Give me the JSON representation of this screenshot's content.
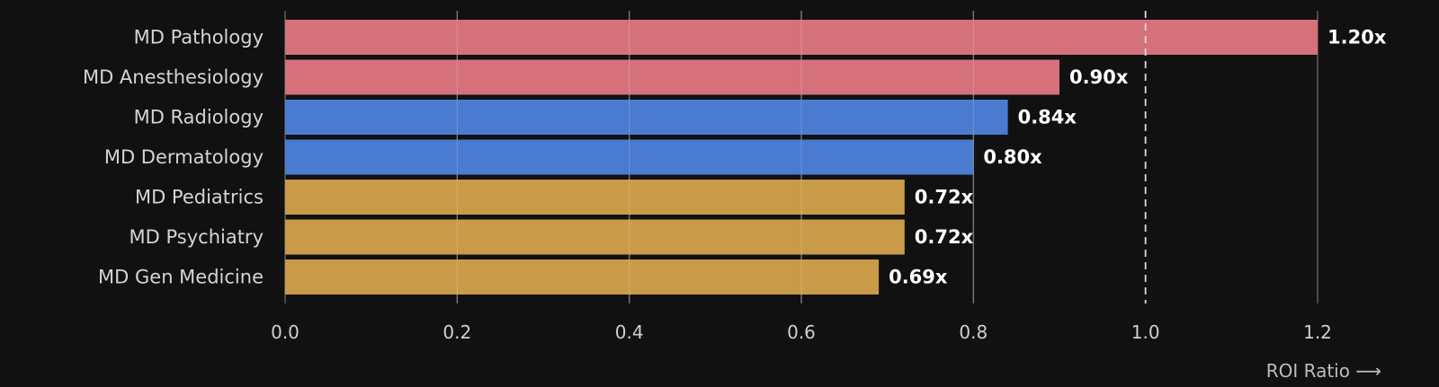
{
  "chart_data": {
    "type": "bar",
    "orientation": "horizontal",
    "categories": [
      "MD Pathology",
      "MD Anesthesiology",
      "MD Radiology",
      "MD Dermatology",
      "MD Pediatrics",
      "MD Psychiatry",
      "MD Gen Medicine"
    ],
    "values": [
      1.2,
      0.9,
      0.84,
      0.8,
      0.72,
      0.72,
      0.69
    ],
    "value_labels": [
      "1.20x",
      "0.90x",
      "0.84x",
      "0.80x",
      "0.72x",
      "0.72x",
      "0.69x"
    ],
    "bar_colors": [
      "#d4717a",
      "#d4717a",
      "#4a7bd0",
      "#4a7bd0",
      "#c99a48",
      "#c99a48",
      "#c99a48"
    ],
    "title": "",
    "xlabel": "ROI Ratio ⟶",
    "ylabel": "",
    "xlim": [
      0,
      1.2
    ],
    "x_ticks": [
      0.0,
      0.2,
      0.4,
      0.6,
      0.8,
      1.0,
      1.2
    ],
    "x_tick_labels": [
      "0.0",
      "0.2",
      "0.4",
      "0.6",
      "0.8",
      "1.0",
      "1.2"
    ],
    "reference_line": {
      "x": 1.0,
      "style": "dashed"
    },
    "grid": true,
    "legend": "none"
  },
  "colors": {
    "background": "#111111",
    "grid": "#5c5c5c",
    "reference_line": "#d9d9d9"
  }
}
